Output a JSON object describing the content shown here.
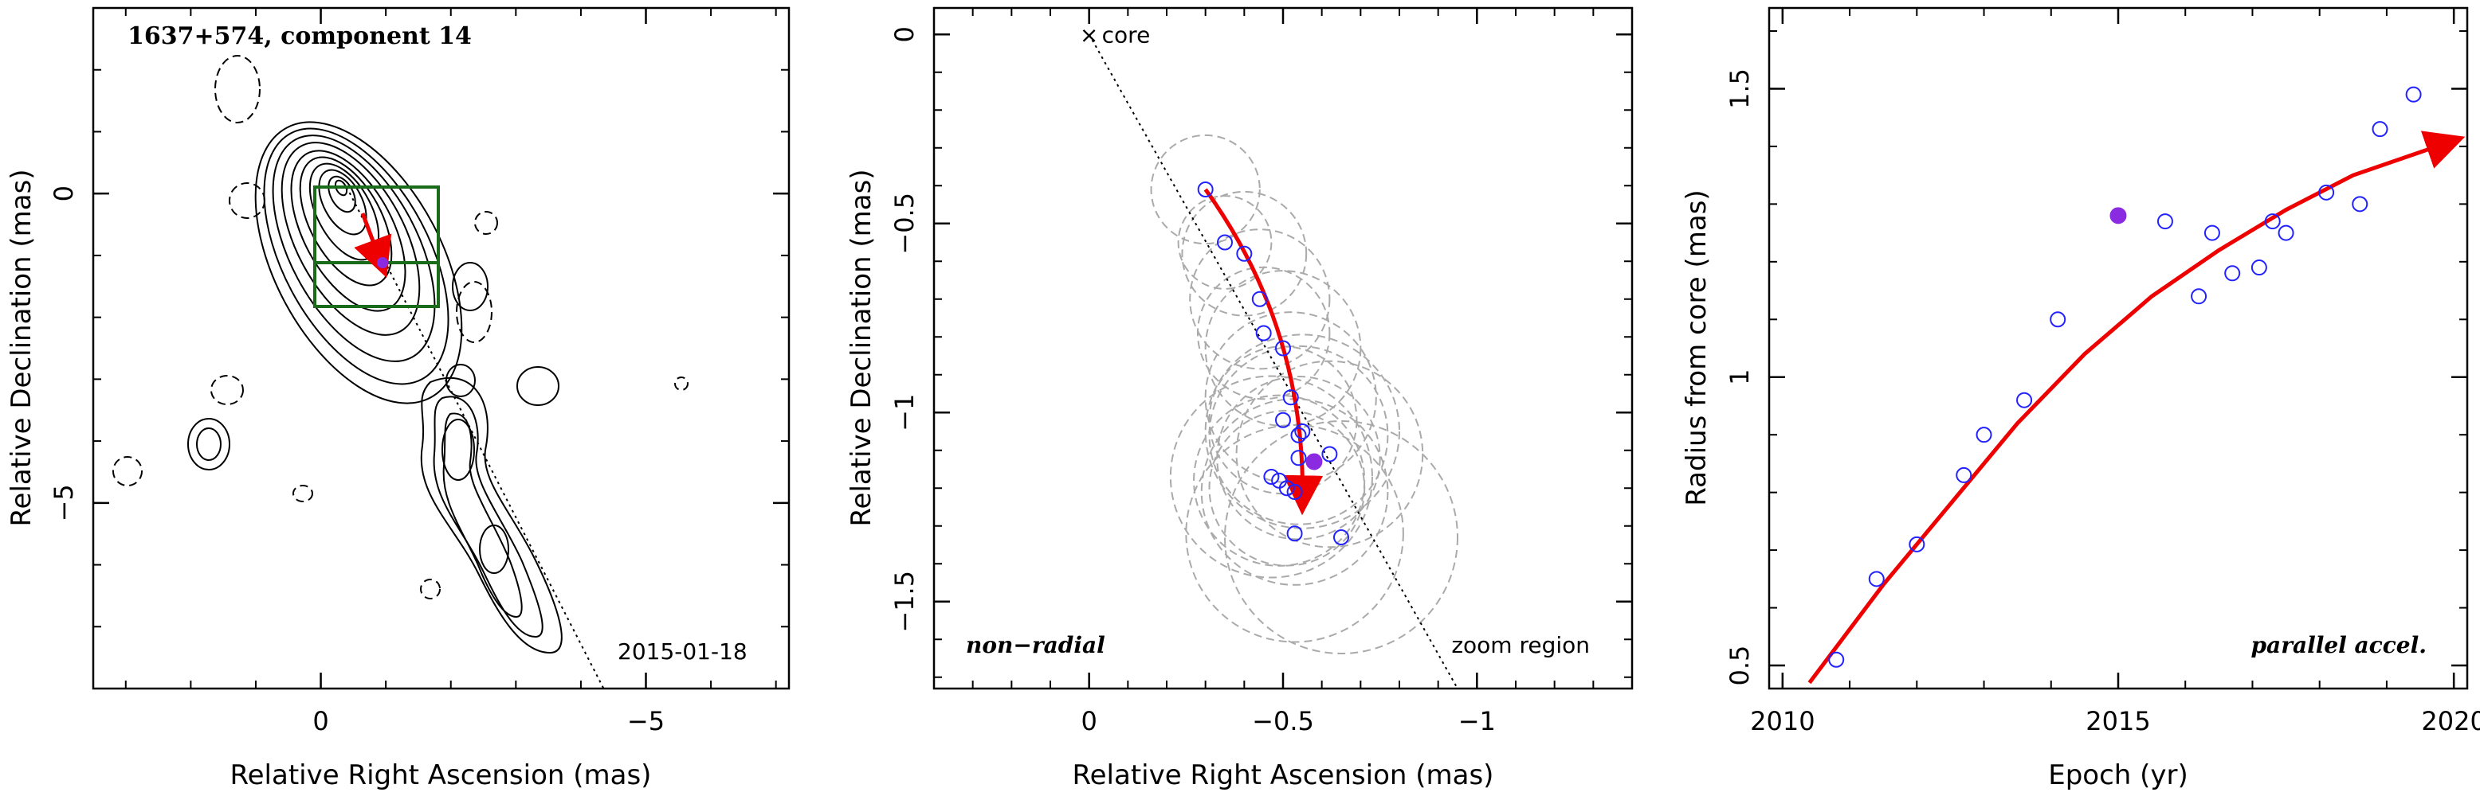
{
  "chart_data": [
    {
      "type": "contour",
      "title": "1637+574, component 14",
      "xlabel": "Relative Right Ascension (mas)",
      "ylabel": "Relative Declination (mas)",
      "xlim": [
        3.5,
        -7.2
      ],
      "ylim": [
        -8,
        3
      ],
      "xticks": [
        0,
        -5
      ],
      "yticks": [
        0,
        -5
      ],
      "annotations": [
        "2015-01-18"
      ],
      "colors": {
        "contour": "#000000",
        "box": "#1a6b1a",
        "arrow": "#ee0000",
        "points": "#2222ff",
        "filled_point": "#8a2be2"
      }
    },
    {
      "type": "scatter",
      "xlabel": "Relative Right Ascension (mas)",
      "ylabel": "Relative Declination (mas)",
      "xlim": [
        0.4,
        -1.4
      ],
      "ylim": [
        -1.73,
        0.07
      ],
      "xticks": [
        0,
        -0.5,
        -1
      ],
      "yticks": [
        0,
        -0.5,
        -1,
        -1.5
      ],
      "core_label": "core",
      "annotations": [
        "non−radial",
        "zoom region"
      ],
      "points": [
        {
          "x": -0.3,
          "y": -0.41
        },
        {
          "x": -0.35,
          "y": -0.55
        },
        {
          "x": -0.4,
          "y": -0.58
        },
        {
          "x": -0.44,
          "y": -0.7
        },
        {
          "x": -0.45,
          "y": -0.79
        },
        {
          "x": -0.5,
          "y": -0.83
        },
        {
          "x": -0.52,
          "y": -0.96
        },
        {
          "x": -0.5,
          "y": -1.02
        },
        {
          "x": -0.55,
          "y": -1.05
        },
        {
          "x": -0.54,
          "y": -1.06
        },
        {
          "x": -0.54,
          "y": -1.12
        },
        {
          "x": -0.62,
          "y": -1.11
        },
        {
          "x": -0.47,
          "y": -1.17
        },
        {
          "x": -0.49,
          "y": -1.18
        },
        {
          "x": -0.51,
          "y": -1.2
        },
        {
          "x": -0.53,
          "y": -1.21
        },
        {
          "x": -0.53,
          "y": -1.32
        },
        {
          "x": -0.65,
          "y": -1.33
        }
      ],
      "filled_point": {
        "x": -0.58,
        "y": -1.13
      },
      "colors": {
        "points": "#2222ff",
        "filled_point": "#8a2be2",
        "arrow": "#ee0000",
        "circles": "#aaaaaa"
      }
    },
    {
      "type": "scatter",
      "xlabel": "Epoch (yr)",
      "ylabel": "Radius from core (mas)",
      "xlim": [
        2009.8,
        2020.2
      ],
      "ylim": [
        0.46,
        1.64
      ],
      "xticks": [
        2010,
        2015,
        2020
      ],
      "yticks": [
        0.5,
        1,
        1.5
      ],
      "annotations": [
        "parallel accel."
      ],
      "points": [
        {
          "x": 2010.8,
          "y": 0.51
        },
        {
          "x": 2011.4,
          "y": 0.65
        },
        {
          "x": 2012.0,
          "y": 0.71
        },
        {
          "x": 2012.7,
          "y": 0.83
        },
        {
          "x": 2013.0,
          "y": 0.9
        },
        {
          "x": 2013.6,
          "y": 0.96
        },
        {
          "x": 2014.1,
          "y": 1.1
        },
        {
          "x": 2015.7,
          "y": 1.27
        },
        {
          "x": 2016.2,
          "y": 1.14
        },
        {
          "x": 2016.4,
          "y": 1.25
        },
        {
          "x": 2016.7,
          "y": 1.18
        },
        {
          "x": 2017.1,
          "y": 1.19
        },
        {
          "x": 2017.3,
          "y": 1.27
        },
        {
          "x": 2017.5,
          "y": 1.25
        },
        {
          "x": 2018.1,
          "y": 1.32
        },
        {
          "x": 2018.6,
          "y": 1.3
        },
        {
          "x": 2018.9,
          "y": 1.43
        },
        {
          "x": 2019.4,
          "y": 1.49
        }
      ],
      "filled_point": {
        "x": 2015.0,
        "y": 1.28
      },
      "fit_curve": [
        {
          "x": 2010.4,
          "y": 0.47
        },
        {
          "x": 2011.5,
          "y": 0.64
        },
        {
          "x": 2012.5,
          "y": 0.78
        },
        {
          "x": 2013.5,
          "y": 0.92
        },
        {
          "x": 2014.5,
          "y": 1.04
        },
        {
          "x": 2015.5,
          "y": 1.14
        },
        {
          "x": 2016.5,
          "y": 1.22
        },
        {
          "x": 2017.5,
          "y": 1.29
        },
        {
          "x": 2018.5,
          "y": 1.35
        },
        {
          "x": 2019.5,
          "y": 1.39
        },
        {
          "x": 2020.0,
          "y": 1.41
        }
      ],
      "colors": {
        "points": "#2222ff",
        "filled_point": "#8a2be2",
        "arrow": "#ee0000"
      }
    }
  ]
}
